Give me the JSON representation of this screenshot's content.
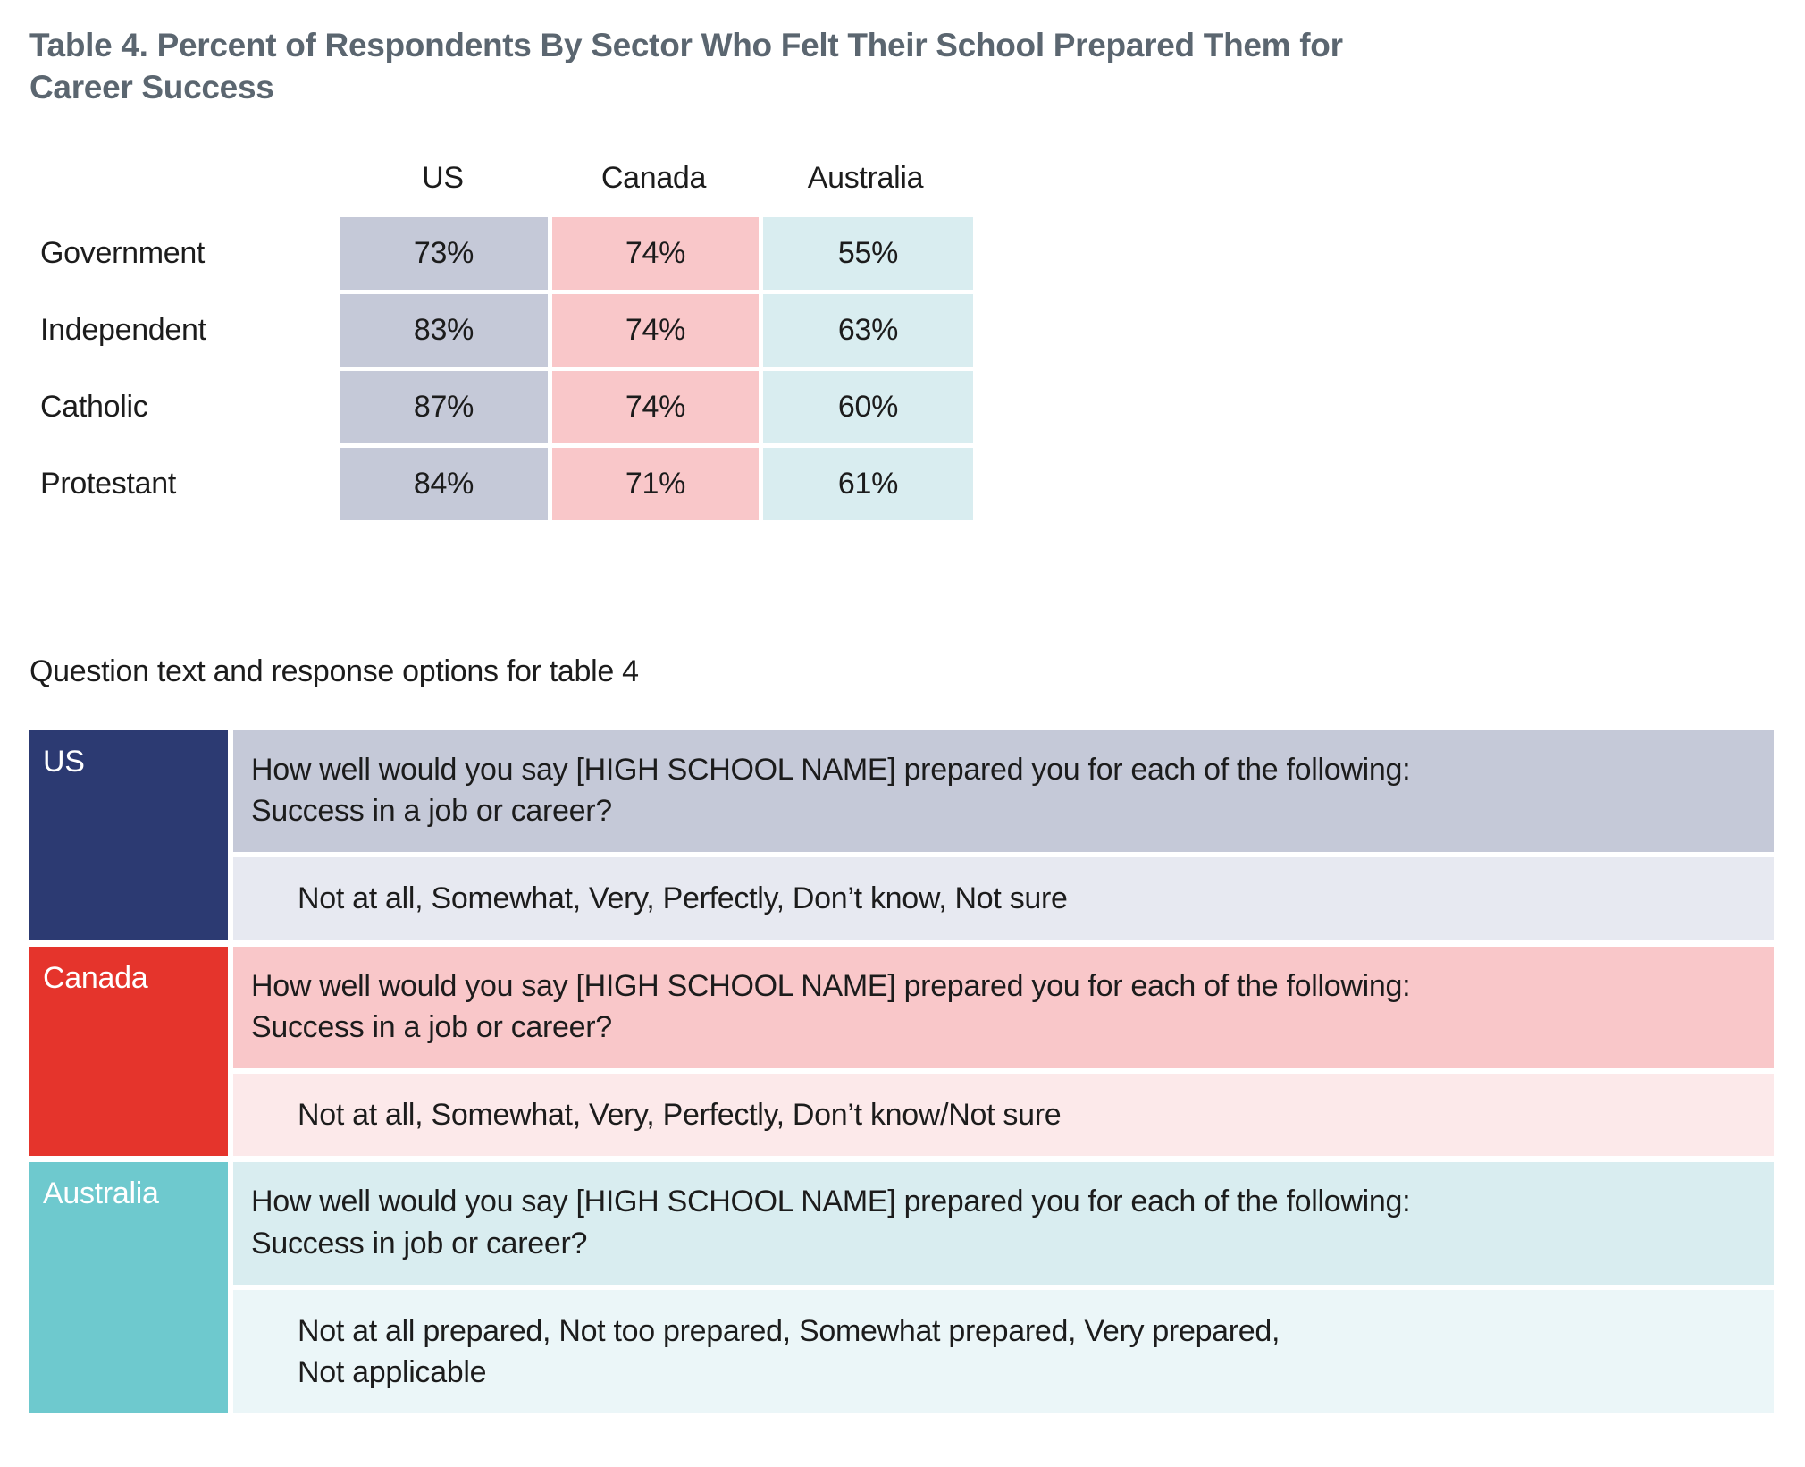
{
  "title": "Table 4. Percent of Respondents By Sector Who Felt Their School Prepared Them for Career Success",
  "results_table": {
    "columns": [
      "US",
      "Canada",
      "Australia"
    ],
    "rows": [
      {
        "label": "Government",
        "values": [
          "73%",
          "74%",
          "55%"
        ]
      },
      {
        "label": "Independent",
        "values": [
          "83%",
          "74%",
          "63%"
        ]
      },
      {
        "label": "Catholic",
        "values": [
          "87%",
          "74%",
          "60%"
        ]
      },
      {
        "label": "Protestant",
        "values": [
          "84%",
          "71%",
          "61%"
        ]
      }
    ]
  },
  "question_section": {
    "heading": "Question text and response options for table 4",
    "entries": [
      {
        "country": "US",
        "question": "How well would you say [HIGH SCHOOL NAME] prepared you for each of the following:\nSuccess in a job or career?",
        "responses": "Not at all, Somewhat, Very, Perfectly, Don’t know, Not sure"
      },
      {
        "country": "Canada",
        "question": "How well would you say [HIGH SCHOOL NAME] prepared you for each of the following:\nSuccess in a job or career?",
        "responses": "Not at all, Somewhat, Very, Perfectly, Don’t know/Not sure"
      },
      {
        "country": "Australia",
        "question": "How well would you say [HIGH SCHOOL NAME] prepared you for each of the following:\nSuccess in job or career?",
        "responses": "Not at all prepared, Not too prepared, Somewhat prepared, Very prepared,\nNot applicable"
      }
    ]
  },
  "colors": {
    "title_color": "#5b6670",
    "us_accent": "#2c3a72",
    "canada_accent": "#e5342c",
    "australia_accent": "#6ec9ce",
    "us_cell": "#c5c9d8",
    "canada_cell": "#f9c7c9",
    "australia_cell": "#d9edf0",
    "us_response": "#e7e9f1",
    "canada_response": "#fce9ea",
    "australia_response": "#ebf6f8"
  }
}
